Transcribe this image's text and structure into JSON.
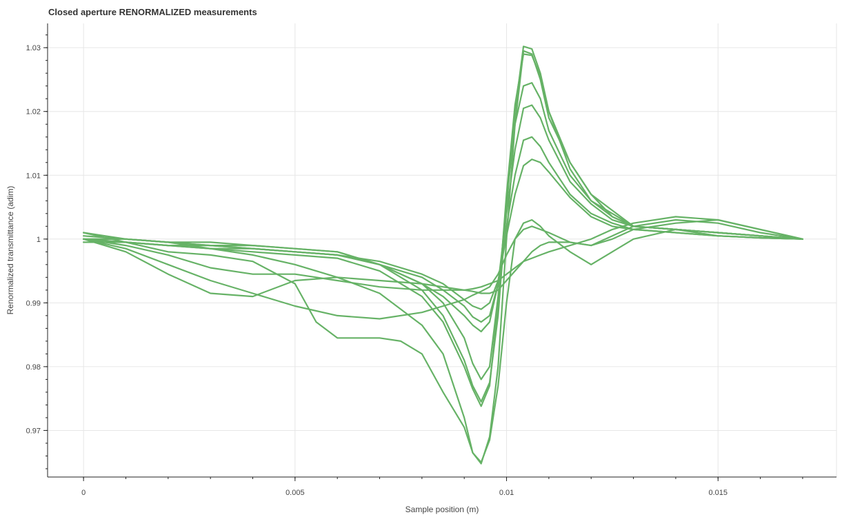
{
  "chart_data": {
    "type": "line",
    "title": "Closed aperture RENORMALIZED measurements",
    "xlabel": "Sample position (m)",
    "ylabel": "Renormalized transmittance (adim)",
    "xlim": [
      -0.00085,
      0.0178
    ],
    "ylim": [
      0.9627,
      1.0338
    ],
    "x_ticks": [
      0,
      0.005,
      0.01,
      0.015
    ],
    "x_tick_labels": [
      "0",
      "0.005",
      "0.01",
      "0.015"
    ],
    "y_ticks": [
      0.97,
      0.98,
      0.99,
      1.0,
      1.01,
      1.02,
      1.03
    ],
    "y_tick_labels": [
      "0.97",
      "0.98",
      "0.99",
      "1",
      "1.01",
      "1.02",
      "1.03"
    ],
    "grid": true,
    "line_color": "#66b266",
    "series": [
      {
        "x": [
          0,
          0.001,
          0.002,
          0.003,
          0.004,
          0.005,
          0.006,
          0.007,
          0.008,
          0.0085,
          0.009,
          0.0092,
          0.0094,
          0.0096,
          0.0098,
          0.01,
          0.0102,
          0.0104,
          0.0106,
          0.0108,
          0.011,
          0.0115,
          0.012,
          0.0125,
          0.013,
          0.014,
          0.015,
          0.016,
          0.017
        ],
        "y": [
          1.0,
          1.0,
          0.9995,
          0.9985,
          0.9975,
          0.996,
          0.994,
          0.9915,
          0.9865,
          0.982,
          0.972,
          0.9665,
          0.9648,
          0.969,
          0.98,
          1.0,
          1.018,
          1.0295,
          1.029,
          1.025,
          1.019,
          1.012,
          1.007,
          1.0045,
          1.002,
          1.0015,
          1.0005,
          1.0002,
          1.0
        ]
      },
      {
        "x": [
          0,
          0.001,
          0.002,
          0.003,
          0.004,
          0.005,
          0.006,
          0.007,
          0.008,
          0.0085,
          0.009,
          0.0092,
          0.0094,
          0.0096,
          0.0098,
          0.01,
          0.0102,
          0.0104,
          0.0106,
          0.0108,
          0.011,
          0.0115,
          0.012,
          0.0125,
          0.013,
          0.014,
          0.015,
          0.016,
          0.017
        ],
        "y": [
          1.001,
          1.0,
          0.9995,
          0.999,
          0.999,
          0.9985,
          0.998,
          0.996,
          0.992,
          0.988,
          0.981,
          0.977,
          0.9745,
          0.9775,
          0.988,
          1.005,
          1.02,
          1.0302,
          1.0298,
          1.026,
          1.02,
          1.012,
          1.007,
          1.0035,
          1.002,
          1.0015,
          1.001,
          1.0005,
          1.0
        ]
      },
      {
        "x": [
          0,
          0.001,
          0.002,
          0.003,
          0.004,
          0.005,
          0.006,
          0.007,
          0.008,
          0.0085,
          0.009,
          0.0092,
          0.0094,
          0.0096,
          0.0098,
          0.01,
          0.0102,
          0.0104,
          0.0106,
          0.0108,
          0.011,
          0.0115,
          0.012,
          0.0125,
          0.013,
          0.014,
          0.015,
          0.016,
          0.017
        ],
        "y": [
          1.0,
          0.9995,
          0.999,
          0.9985,
          0.998,
          0.9975,
          0.997,
          0.995,
          0.991,
          0.987,
          0.98,
          0.9765,
          0.9738,
          0.977,
          0.99,
          1.007,
          1.021,
          1.029,
          1.0288,
          1.0255,
          1.02,
          1.011,
          1.006,
          1.004,
          1.002,
          1.0015,
          1.001,
          1.0005,
          1.0
        ]
      },
      {
        "x": [
          0,
          0.001,
          0.002,
          0.003,
          0.004,
          0.005,
          0.006,
          0.007,
          0.008,
          0.0085,
          0.009,
          0.0092,
          0.0094,
          0.0096,
          0.0098,
          0.01,
          0.0102,
          0.0104,
          0.0106,
          0.0108,
          0.011,
          0.0115,
          0.012,
          0.0125,
          0.013,
          0.014,
          0.015,
          0.016,
          0.017
        ],
        "y": [
          1.0005,
          1.0,
          0.9995,
          0.999,
          0.9985,
          0.998,
          0.9975,
          0.996,
          0.993,
          0.99,
          0.9845,
          0.9805,
          0.978,
          0.98,
          0.991,
          1.006,
          1.018,
          1.024,
          1.0245,
          1.022,
          1.017,
          1.01,
          1.006,
          1.0035,
          1.002,
          1.0015,
          1.001,
          1.0005,
          1.0
        ]
      },
      {
        "x": [
          0,
          0.001,
          0.002,
          0.003,
          0.004,
          0.005,
          0.006,
          0.007,
          0.008,
          0.0085,
          0.009,
          0.0092,
          0.0094,
          0.0096,
          0.0098,
          0.01,
          0.0102,
          0.0104,
          0.0106,
          0.0108,
          0.011,
          0.0115,
          0.012,
          0.0125,
          0.013,
          0.014,
          0.015,
          0.016,
          0.017
        ],
        "y": [
          1.0,
          1.0,
          0.9995,
          0.9995,
          0.999,
          0.9985,
          0.998,
          0.996,
          0.993,
          0.991,
          0.988,
          0.9865,
          0.9855,
          0.987,
          0.993,
          1.004,
          1.014,
          1.0205,
          1.021,
          1.019,
          1.0155,
          1.009,
          1.0055,
          1.003,
          1.002,
          1.0015,
          1.001,
          1.0005,
          1.0
        ]
      },
      {
        "x": [
          0,
          0.001,
          0.002,
          0.003,
          0.004,
          0.005,
          0.006,
          0.007,
          0.008,
          0.0085,
          0.009,
          0.0092,
          0.0094,
          0.0096,
          0.0098,
          0.01,
          0.0102,
          0.0104,
          0.0106,
          0.0108,
          0.011,
          0.0115,
          0.012,
          0.0125,
          0.013,
          0.014,
          0.015,
          0.016,
          0.017
        ],
        "y": [
          1.0,
          0.9995,
          0.999,
          0.9985,
          0.9985,
          0.998,
          0.9975,
          0.996,
          0.994,
          0.992,
          0.9895,
          0.9878,
          0.987,
          0.988,
          0.993,
          1.002,
          1.01,
          1.0155,
          1.016,
          1.0145,
          1.012,
          1.007,
          1.004,
          1.0025,
          1.0015,
          1.001,
          1.0005,
          1.0002,
          1.0
        ]
      },
      {
        "x": [
          0,
          0.001,
          0.002,
          0.003,
          0.004,
          0.005,
          0.006,
          0.007,
          0.008,
          0.0085,
          0.009,
          0.0092,
          0.0094,
          0.0096,
          0.0098,
          0.01,
          0.0102,
          0.0104,
          0.0106,
          0.0108,
          0.011,
          0.0115,
          0.012,
          0.0125,
          0.013,
          0.014,
          0.015,
          0.016,
          0.017
        ],
        "y": [
          0.9995,
          0.9995,
          0.999,
          0.999,
          0.9985,
          0.998,
          0.9975,
          0.9965,
          0.9945,
          0.993,
          0.9905,
          0.9895,
          0.989,
          0.99,
          0.9935,
          1.0005,
          1.007,
          1.0115,
          1.0125,
          1.012,
          1.0105,
          1.0065,
          1.0035,
          1.002,
          1.0015,
          1.001,
          1.0005,
          1.0002,
          1.0
        ]
      },
      {
        "x": [
          0,
          0.001,
          0.002,
          0.003,
          0.004,
          0.005,
          0.006,
          0.007,
          0.008,
          0.0085,
          0.009,
          0.0092,
          0.0094,
          0.0096,
          0.0098,
          0.01,
          0.0102,
          0.0104,
          0.0106,
          0.0108,
          0.011,
          0.0115,
          0.012,
          0.0125,
          0.013,
          0.014,
          0.015,
          0.016,
          0.017
        ],
        "y": [
          1.0,
          0.9985,
          0.996,
          0.9935,
          0.9915,
          0.9895,
          0.988,
          0.9875,
          0.9885,
          0.9895,
          0.9905,
          0.9912,
          0.9918,
          0.9925,
          0.9945,
          0.9975,
          1.0,
          1.0015,
          1.002,
          1.0015,
          1.001,
          0.9995,
          0.999,
          1.0,
          1.0015,
          1.0025,
          1.003,
          1.0015,
          1.0
        ]
      },
      {
        "x": [
          0,
          0.001,
          0.002,
          0.003,
          0.004,
          0.005,
          0.006,
          0.007,
          0.008,
          0.0085,
          0.009,
          0.0092,
          0.0094,
          0.0096,
          0.0098,
          0.01,
          0.0102,
          0.0104,
          0.0106,
          0.0108,
          0.011,
          0.0115,
          0.012,
          0.0125,
          0.013,
          0.014,
          0.015,
          0.016,
          0.017
        ],
        "y": [
          1.0,
          0.999,
          0.9975,
          0.9955,
          0.9945,
          0.9945,
          0.9935,
          0.9925,
          0.992,
          0.992,
          0.992,
          0.9922,
          0.9925,
          0.993,
          0.9935,
          0.9945,
          0.9955,
          0.9965,
          0.997,
          0.9975,
          0.998,
          0.999,
          1.0,
          1.0015,
          1.0025,
          1.0035,
          1.003,
          1.0015,
          1.0
        ]
      },
      {
        "x": [
          0,
          0.001,
          0.002,
          0.003,
          0.004,
          0.005,
          0.006,
          0.007,
          0.008,
          0.0085,
          0.009,
          0.0092,
          0.0094,
          0.0096,
          0.0098,
          0.01,
          0.0102,
          0.0104,
          0.0106,
          0.0108,
          0.011,
          0.0115,
          0.012,
          0.0125,
          0.013,
          0.014,
          0.015,
          0.016,
          0.017
        ],
        "y": [
          1.0,
          0.998,
          0.9945,
          0.9915,
          0.991,
          0.9935,
          0.994,
          0.9935,
          0.993,
          0.9925,
          0.992,
          0.9918,
          0.9915,
          0.9915,
          0.992,
          0.9935,
          0.995,
          0.9965,
          0.998,
          0.999,
          0.9995,
          0.9995,
          0.999,
          1.0005,
          1.002,
          1.003,
          1.0025,
          1.001,
          1.0
        ]
      },
      {
        "x": [
          0,
          0.001,
          0.002,
          0.003,
          0.004,
          0.005,
          0.0055,
          0.006,
          0.0065,
          0.007,
          0.0075,
          0.008,
          0.0085,
          0.009,
          0.0092,
          0.0094,
          0.0096,
          0.0098,
          0.01,
          0.0102,
          0.0104,
          0.0106,
          0.0108,
          0.011,
          0.0115,
          0.012,
          0.0125,
          0.013,
          0.014,
          0.015,
          0.016,
          0.017
        ],
        "y": [
          1.001,
          0.9995,
          0.998,
          0.9975,
          0.9965,
          0.993,
          0.987,
          0.9845,
          0.9845,
          0.9845,
          0.984,
          0.982,
          0.976,
          0.9705,
          0.9665,
          0.965,
          0.9685,
          0.977,
          0.99,
          1.0,
          1.0025,
          1.003,
          1.002,
          1.0005,
          0.998,
          0.996,
          0.998,
          1.0,
          1.0015,
          1.001,
          1.0005,
          1.0
        ]
      }
    ]
  }
}
